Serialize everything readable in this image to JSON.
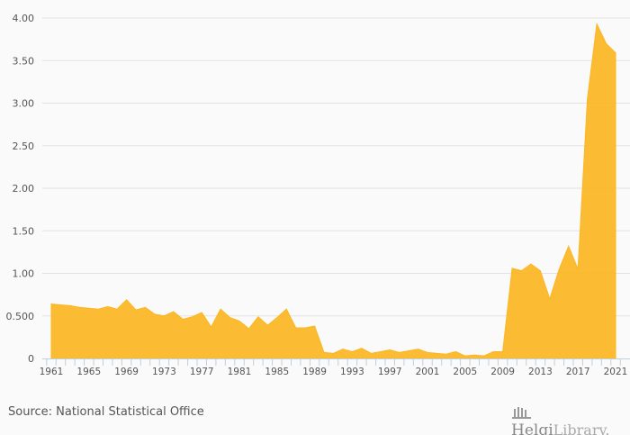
{
  "chart_data": {
    "type": "area",
    "title": "",
    "xlabel": "",
    "ylabel": "",
    "ylim": [
      0,
      4
    ],
    "yticks": [
      "0",
      "0.500",
      "1.00",
      "1.50",
      "2.00",
      "2.50",
      "3.00",
      "3.50",
      "4.00"
    ],
    "ytick_values": [
      0,
      0.5,
      1,
      1.5,
      2,
      2.5,
      3,
      3.5,
      4
    ],
    "xtick_labels": [
      "1961",
      "1965",
      "1969",
      "1973",
      "1977",
      "1981",
      "1985",
      "1989",
      "1993",
      "1997",
      "2001",
      "2005",
      "2009",
      "2013",
      "2017",
      "2021"
    ],
    "x": [
      1961,
      1962,
      1963,
      1964,
      1965,
      1966,
      1967,
      1968,
      1969,
      1970,
      1971,
      1972,
      1973,
      1974,
      1975,
      1976,
      1977,
      1978,
      1979,
      1980,
      1981,
      1982,
      1983,
      1984,
      1985,
      1986,
      1987,
      1988,
      1989,
      1990,
      1991,
      1992,
      1993,
      1994,
      1995,
      1996,
      1997,
      1998,
      1999,
      2000,
      2001,
      2002,
      2003,
      2004,
      2005,
      2006,
      2007,
      2008,
      2009,
      2010,
      2011,
      2012,
      2013,
      2014,
      2015,
      2016,
      2017,
      2018,
      2019,
      2020,
      2021
    ],
    "values": [
      0.64,
      0.63,
      0.62,
      0.6,
      0.59,
      0.58,
      0.61,
      0.58,
      0.69,
      0.57,
      0.6,
      0.52,
      0.5,
      0.55,
      0.46,
      0.49,
      0.54,
      0.37,
      0.58,
      0.48,
      0.44,
      0.35,
      0.49,
      0.39,
      0.48,
      0.58,
      0.36,
      0.36,
      0.38,
      0.07,
      0.06,
      0.11,
      0.08,
      0.12,
      0.06,
      0.08,
      0.1,
      0.07,
      0.09,
      0.11,
      0.07,
      0.06,
      0.05,
      0.08,
      0.03,
      0.04,
      0.03,
      0.08,
      0.08,
      1.06,
      1.03,
      1.11,
      1.03,
      0.7,
      1.05,
      1.32,
      1.05,
      3.05,
      3.93,
      3.7,
      3.59
    ],
    "grid": true,
    "color": "#fbb623"
  },
  "footer": {
    "source": "Source: National Statistical Office",
    "logo_text": "HelgiLibrary."
  }
}
